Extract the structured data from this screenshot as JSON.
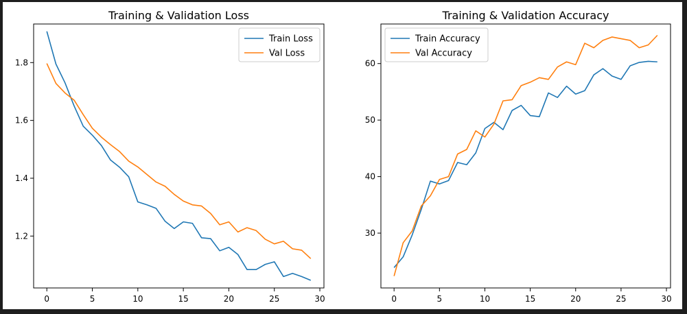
{
  "chart_data": [
    {
      "type": "line",
      "title": "Training & Validation Loss",
      "xlabel": "",
      "ylabel": "",
      "xlim": [
        -1.45,
        30.45
      ],
      "ylim": [
        1.0205,
        1.9335
      ],
      "xticks": [
        0,
        5,
        10,
        15,
        20,
        25,
        30
      ],
      "yticks": [
        1.2,
        1.4,
        1.6,
        1.8
      ],
      "xtick_labels": [
        "0",
        "5",
        "10",
        "15",
        "20",
        "25",
        "30"
      ],
      "ytick_labels": [
        "1.2",
        "1.4",
        "1.6",
        "1.8"
      ],
      "grid": false,
      "legend": "top-right",
      "x": [
        0,
        1,
        2,
        3,
        4,
        5,
        6,
        7,
        8,
        9,
        10,
        11,
        12,
        13,
        14,
        15,
        16,
        17,
        18,
        19,
        20,
        21,
        22,
        23,
        24,
        25,
        26,
        27,
        28,
        29
      ],
      "series": [
        {
          "name": "Train Loss",
          "color": "#1f77b4",
          "values": [
            1.908,
            1.795,
            1.73,
            1.65,
            1.58,
            1.549,
            1.513,
            1.463,
            1.438,
            1.405,
            1.318,
            1.308,
            1.296,
            1.251,
            1.226,
            1.249,
            1.244,
            1.194,
            1.191,
            1.149,
            1.161,
            1.136,
            1.084,
            1.084,
            1.102,
            1.111,
            1.06,
            1.071,
            1.06,
            1.047
          ]
        },
        {
          "name": "Val Loss",
          "color": "#ff7f0e",
          "values": [
            1.797,
            1.728,
            1.695,
            1.67,
            1.62,
            1.573,
            1.542,
            1.516,
            1.492,
            1.459,
            1.439,
            1.413,
            1.387,
            1.372,
            1.344,
            1.321,
            1.308,
            1.304,
            1.278,
            1.239,
            1.249,
            1.214,
            1.229,
            1.219,
            1.189,
            1.173,
            1.182,
            1.156,
            1.151,
            1.122
          ]
        }
      ]
    },
    {
      "type": "line",
      "title": "Training & Validation Accuracy",
      "xlabel": "",
      "ylabel": "",
      "xlim": [
        -1.45,
        30.45
      ],
      "ylim": [
        20.3,
        67.0
      ],
      "xticks": [
        0,
        5,
        10,
        15,
        20,
        25,
        30
      ],
      "yticks": [
        30,
        40,
        50,
        60
      ],
      "xtick_labels": [
        "0",
        "5",
        "10",
        "15",
        "20",
        "25",
        "30"
      ],
      "ytick_labels": [
        "30",
        "40",
        "50",
        "60"
      ],
      "grid": false,
      "legend": "top-left",
      "x": [
        0,
        1,
        2,
        3,
        4,
        5,
        6,
        7,
        8,
        9,
        10,
        11,
        12,
        13,
        14,
        15,
        16,
        17,
        18,
        19,
        20,
        21,
        22,
        23,
        24,
        25,
        26,
        27,
        28,
        29
      ],
      "series": [
        {
          "name": "Train Accuracy",
          "color": "#1f77b4",
          "values": [
            23.9,
            25.8,
            29.7,
            34.2,
            39.2,
            38.7,
            39.3,
            42.5,
            42.1,
            44.2,
            48.5,
            49.6,
            48.3,
            51.7,
            52.6,
            50.8,
            50.6,
            54.8,
            54.0,
            56.0,
            54.6,
            55.2,
            58.0,
            59.1,
            57.8,
            57.2,
            59.6,
            60.2,
            60.4,
            60.3
          ]
        },
        {
          "name": "Val Accuracy",
          "color": "#ff7f0e",
          "values": [
            22.4,
            28.3,
            30.4,
            34.8,
            36.6,
            39.5,
            40.0,
            44.0,
            44.8,
            48.1,
            47.0,
            49.3,
            53.4,
            53.6,
            56.1,
            56.7,
            57.5,
            57.2,
            59.4,
            60.3,
            59.8,
            63.6,
            62.8,
            64.1,
            64.7,
            64.4,
            64.1,
            62.8,
            63.3,
            65.0
          ]
        }
      ]
    }
  ]
}
